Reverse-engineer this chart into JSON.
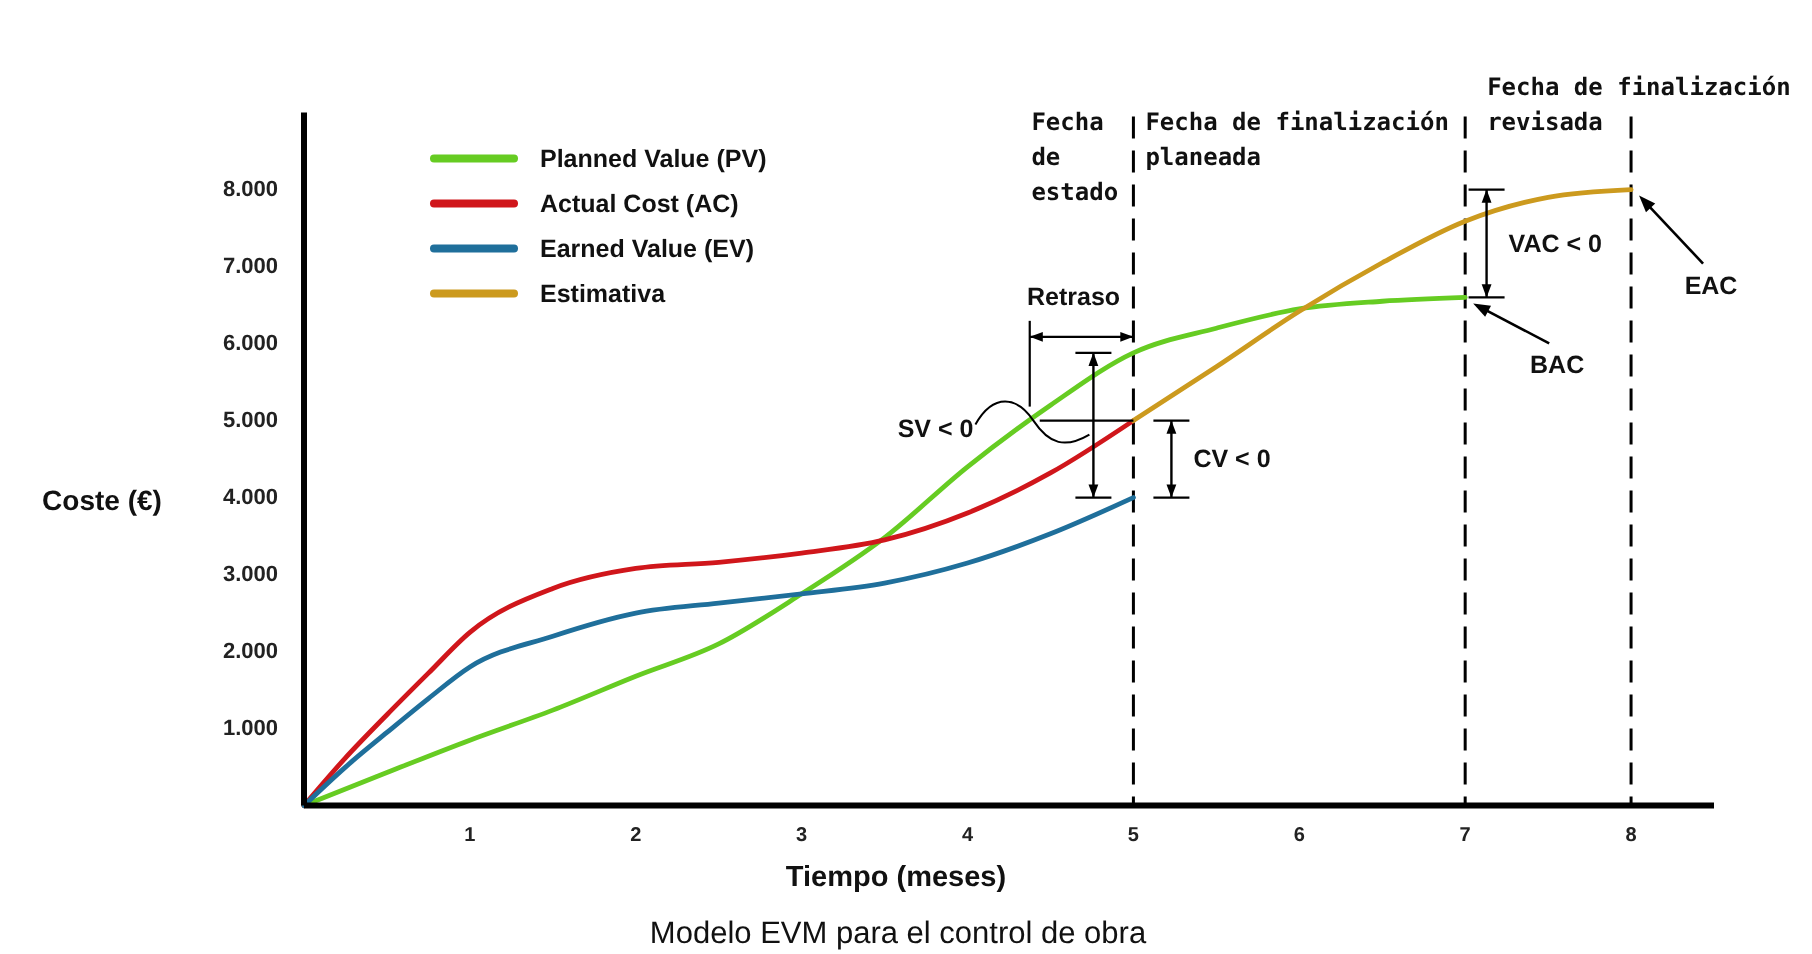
{
  "chart_data": {
    "type": "line",
    "title": "Modelo EVM para el control de obra",
    "xlabel": "Tiempo (meses)",
    "ylabel": "Coste (€)",
    "xlim": [
      0,
      8.5
    ],
    "ylim": [
      0,
      9000
    ],
    "xticks": [
      1,
      2,
      3,
      4,
      5,
      6,
      7,
      8
    ],
    "yticks": [
      {
        "value": 1000,
        "label": "1.000"
      },
      {
        "value": 2000,
        "label": "2.000"
      },
      {
        "value": 3000,
        "label": "3.000"
      },
      {
        "value": 4000,
        "label": "4.000"
      },
      {
        "value": 5000,
        "label": "5.000"
      },
      {
        "value": 6000,
        "label": "6.000"
      },
      {
        "value": 7000,
        "label": "7.000"
      },
      {
        "value": 8000,
        "label": "8.000"
      }
    ],
    "legend": "top left",
    "series": [
      {
        "name": "Planned Value (PV)",
        "color": "#66cc22",
        "x": [
          0,
          0.5,
          1,
          1.5,
          2,
          2.5,
          3,
          3.5,
          4,
          4.5,
          5,
          5.5,
          6,
          6.5,
          7
        ],
        "values": [
          0,
          430,
          850,
          1240,
          1680,
          2100,
          2750,
          3480,
          4400,
          5200,
          5880,
          6200,
          6450,
          6550,
          6600
        ]
      },
      {
        "name": "Actual Cost (AC)",
        "color": "#d0161b",
        "x": [
          0,
          0.25,
          0.5,
          0.75,
          1,
          1.5,
          2,
          2.5,
          3,
          3.5,
          4,
          4.5,
          5
        ],
        "values": [
          0,
          620,
          1180,
          1720,
          2250,
          2820,
          3080,
          3160,
          3280,
          3450,
          3800,
          4320,
          5000
        ]
      },
      {
        "name": "Earned Value (EV)",
        "color": "#1f6f9b",
        "x": [
          0,
          0.25,
          0.5,
          0.75,
          1,
          1.5,
          2,
          2.5,
          3,
          3.5,
          4,
          4.5,
          5
        ],
        "values": [
          0,
          500,
          950,
          1390,
          1800,
          2200,
          2500,
          2630,
          2750,
          2890,
          3150,
          3530,
          4000
        ]
      },
      {
        "name": "Estimativa",
        "color": "#cc9a1e",
        "x": [
          5,
          5.5,
          6,
          6.5,
          7,
          7.5,
          8
        ],
        "values": [
          5000,
          5700,
          6420,
          7050,
          7590,
          7900,
          8000
        ]
      }
    ],
    "ref_lines": [
      {
        "axis": "x",
        "value": 5,
        "label": "Fecha de estado",
        "color": "#000000",
        "line_style": "dashed"
      },
      {
        "axis": "x",
        "value": 7,
        "label": "Fecha de finalización planeada",
        "color": "#000000",
        "line_style": "dashed"
      },
      {
        "axis": "x",
        "value": 8,
        "label": "Fecha de finalización revisada",
        "color": "#000000",
        "line_style": "dashed"
      }
    ],
    "annotations": [
      "Retraso",
      "SV < 0",
      "CV < 0",
      "VAC < 0",
      "BAC",
      "EAC"
    ]
  }
}
